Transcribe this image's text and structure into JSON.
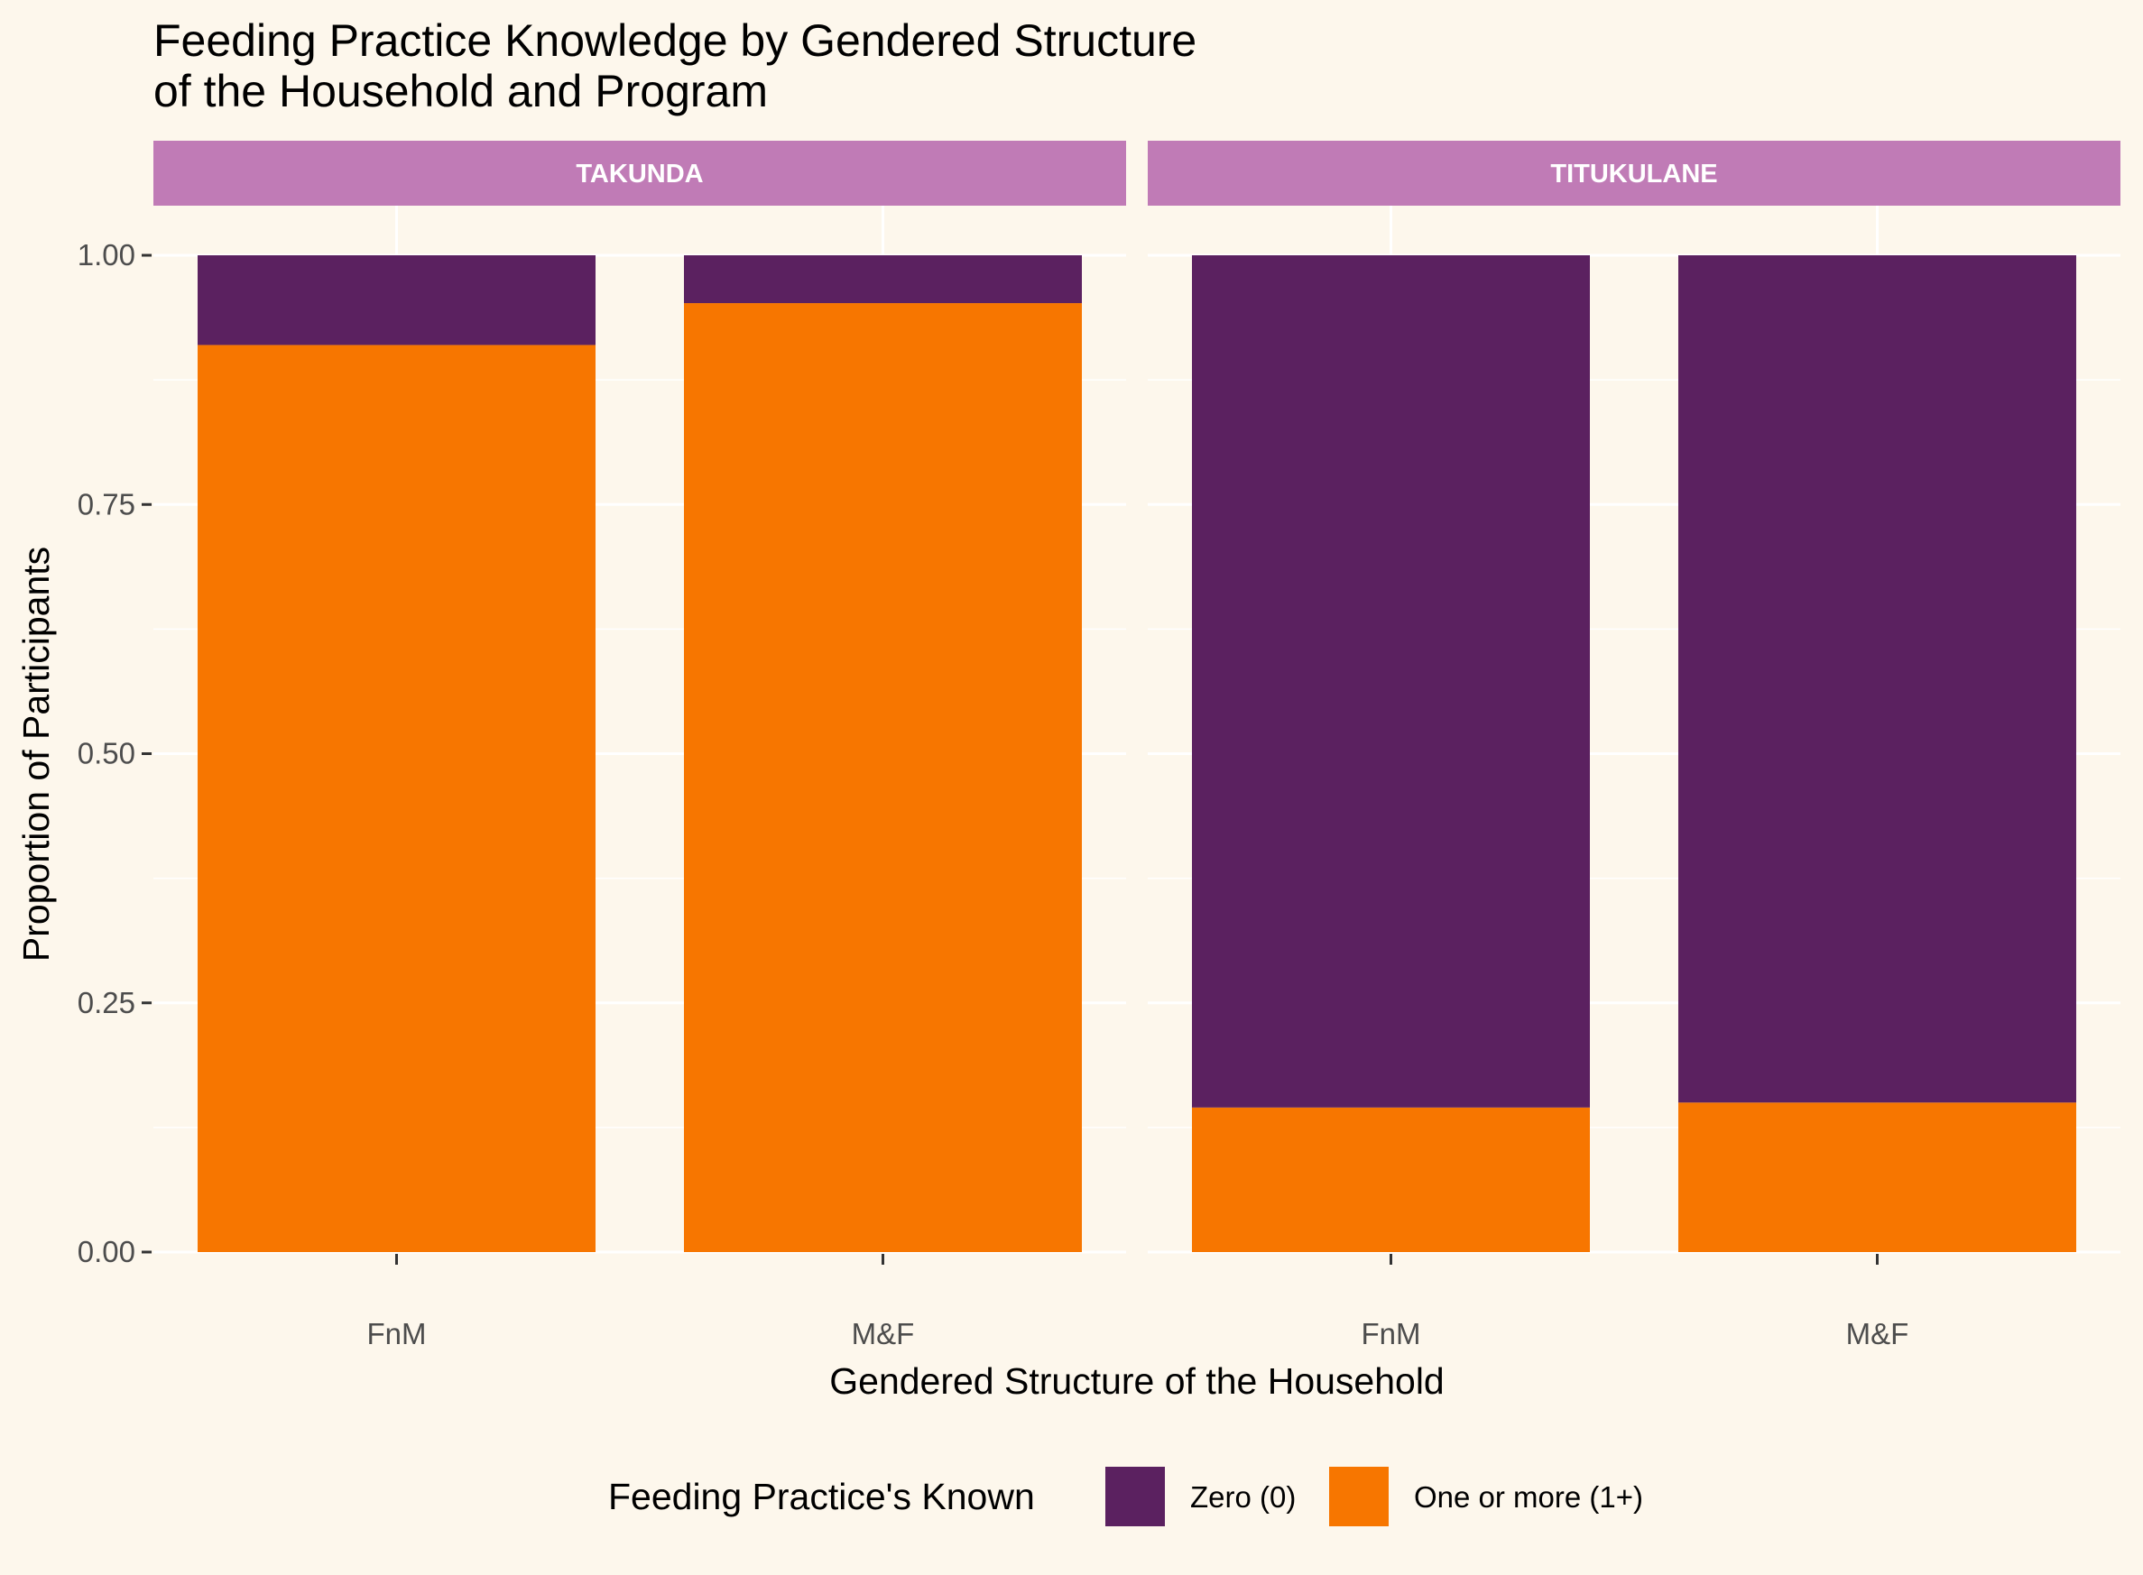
{
  "chart_data": {
    "type": "bar",
    "stacked": true,
    "title": "Feeding Practice Knowledge by Gendered Structure\nof the Household and Program",
    "xlabel": "Gendered Structure of the Household",
    "ylabel": "Proportion of Participants",
    "ylim": [
      0,
      1
    ],
    "yticks": [
      "0.00",
      "0.25",
      "0.50",
      "0.75",
      "1.00"
    ],
    "yticks_values": [
      0,
      0.25,
      0.5,
      0.75,
      1.0
    ],
    "grid": true,
    "legend": {
      "title": "Feeding Practice's Known",
      "position": "bottom"
    },
    "colors": {
      "background": "#fdf7ec",
      "strip": "#c07bb6",
      "strip_text": "#ffffff",
      "gridline": "#ffffff"
    },
    "series": [
      {
        "name": "Zero (0)",
        "color": "#5b2160"
      },
      {
        "name": "One or more (1+)",
        "color": "#f77600"
      }
    ],
    "facets": [
      {
        "label": "TAKUNDA",
        "categories": [
          "FnM",
          "M&F"
        ],
        "series_values": {
          "Zero (0)": [
            0.09,
            0.048
          ],
          "One or more (1+)": [
            0.91,
            0.952
          ]
        }
      },
      {
        "label": "TITUKULANE",
        "categories": [
          "FnM",
          "M&F"
        ],
        "series_values": {
          "Zero (0)": [
            0.855,
            0.85
          ],
          "One or more (1+)": [
            0.145,
            0.15
          ]
        }
      }
    ]
  }
}
